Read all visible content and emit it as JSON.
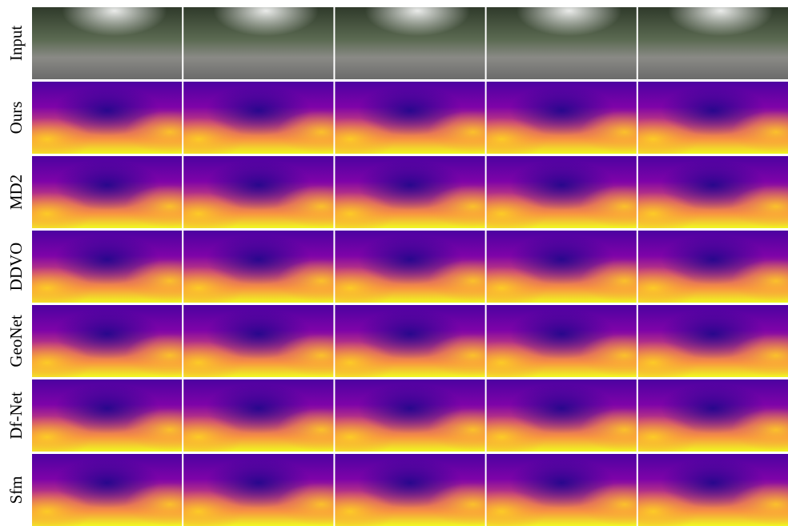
{
  "rows": [
    {
      "label": "Input"
    },
    {
      "label": "Ours"
    },
    {
      "label": "MD2"
    },
    {
      "label": "DDVO"
    },
    {
      "label": "GeoNet"
    },
    {
      "label": "Df-Net"
    },
    {
      "label": "Sfm"
    }
  ]
}
